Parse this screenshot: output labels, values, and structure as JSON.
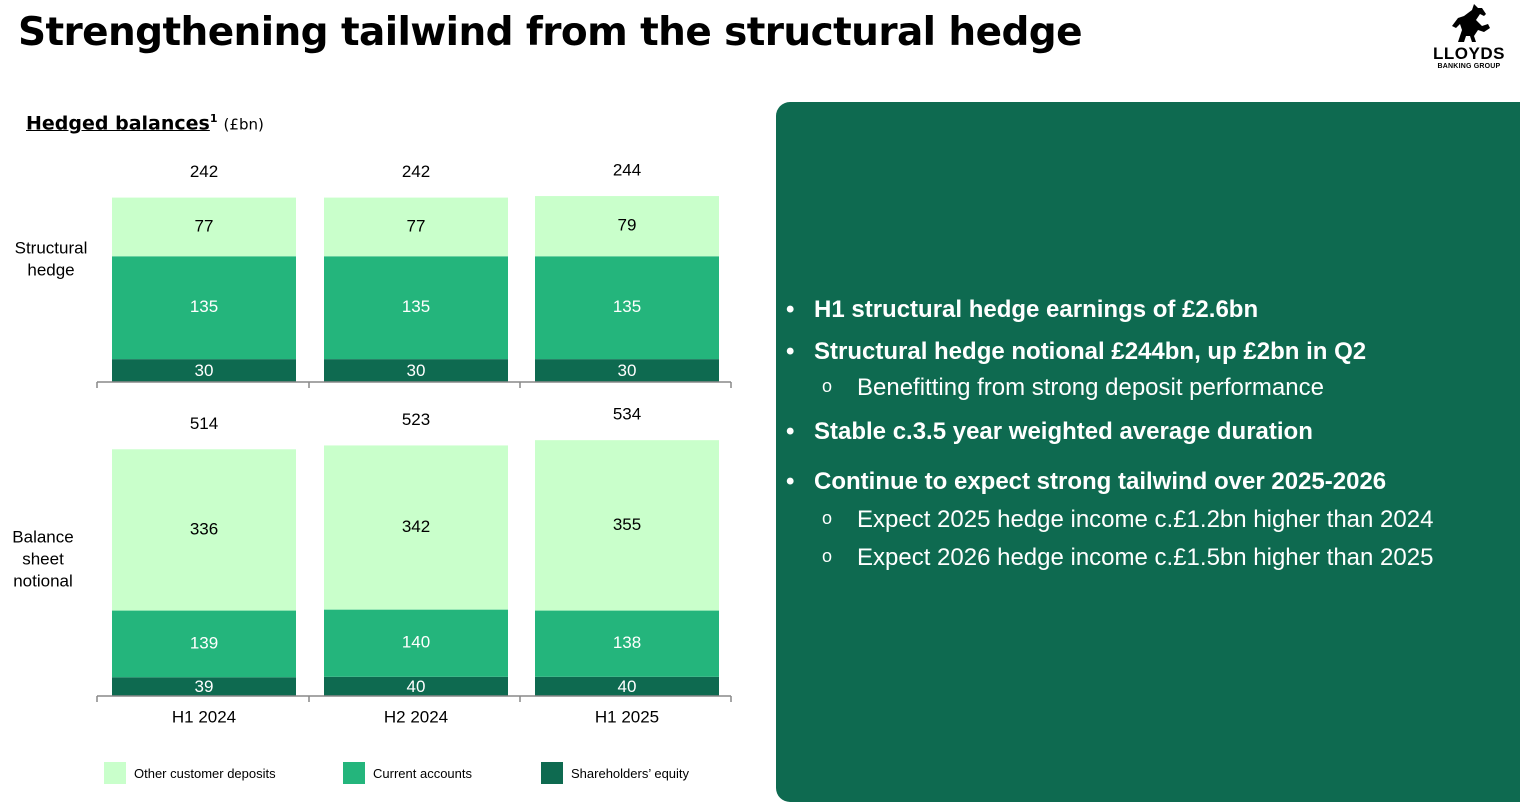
{
  "page": {
    "title": "Strengthening tailwind from the structural hedge",
    "logo": {
      "name": "LLOYDS",
      "sub": "BANKING GROUP"
    },
    "chart_title": "Hedged balances",
    "chart_title_sup": "1",
    "chart_unit": "(£bn)"
  },
  "colors": {
    "other_customer_deposits": "#c9ffcb",
    "current_accounts": "#24b57c",
    "shareholders_equity": "#0e6a50",
    "panel": "#0e6a50"
  },
  "chart_data": [
    {
      "type": "bar",
      "stacked": true,
      "row_label": "Structural hedge",
      "categories": [
        "H1 2024",
        "H2 2024",
        "H1 2025"
      ],
      "totals": [
        242,
        242,
        244
      ],
      "series": [
        {
          "name": "Shareholders’ equity",
          "values": [
            30,
            30,
            30
          ]
        },
        {
          "name": "Current accounts",
          "values": [
            135,
            135,
            135
          ]
        },
        {
          "name": "Other customer deposits",
          "values": [
            77,
            77,
            79
          ]
        }
      ]
    },
    {
      "type": "bar",
      "stacked": true,
      "row_label": "Balance sheet notional",
      "categories": [
        "H1 2024",
        "H2 2024",
        "H1 2025"
      ],
      "totals": [
        514,
        523,
        534
      ],
      "series": [
        {
          "name": "Shareholders’ equity",
          "values": [
            39,
            40,
            40
          ]
        },
        {
          "name": "Current accounts",
          "values": [
            139,
            140,
            138
          ]
        },
        {
          "name": "Other customer deposits",
          "values": [
            336,
            342,
            355
          ]
        }
      ]
    }
  ],
  "legend": [
    "Other customer deposits",
    "Current accounts",
    "Shareholders’ equity"
  ],
  "bullets": [
    {
      "text": "H1 structural hedge earnings of £2.6bn",
      "subs": []
    },
    {
      "text": "Structural hedge notional £244bn, up £2bn in Q2",
      "subs": [
        "Benefitting from strong deposit performance"
      ]
    },
    {
      "text": "Stable c.3.5 year weighted average duration",
      "subs": []
    },
    {
      "text": "Continue to expect strong tailwind over 2025-2026",
      "subs": [
        "Expect 2025 hedge income c.£1.2bn higher than 2024",
        "Expect 2026 hedge income c.£1.5bn higher than 2025"
      ]
    }
  ]
}
